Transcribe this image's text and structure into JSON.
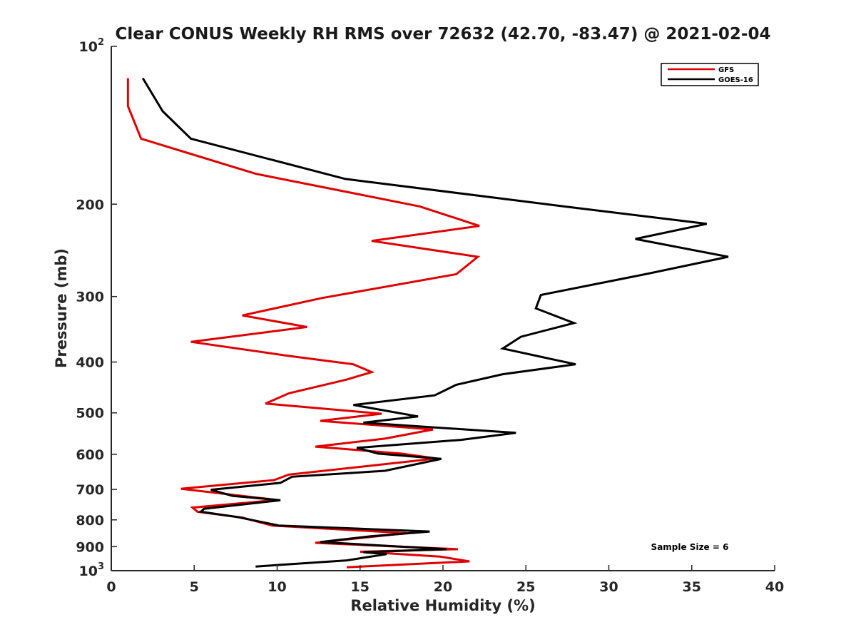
{
  "chart_data": {
    "type": "line",
    "title": "Clear CONUS Weekly RH RMS over 72632 (42.70, -83.47) @ 2021-02-04",
    "xlabel": "Relative Humidity (%)",
    "ylabel": "Pressure (mb)",
    "xlim": [
      0,
      40
    ],
    "ylim": [
      100,
      1000
    ],
    "y_scale": "log",
    "y_reversed": true,
    "grid": false,
    "legend_position": "top-right",
    "x_ticks": [
      "0",
      "5",
      "10",
      "15",
      "20",
      "25",
      "30",
      "35",
      "40"
    ],
    "y_ticks": [
      {
        "value": 100,
        "base": "10",
        "exp": "2"
      },
      {
        "value": 200,
        "label": "200"
      },
      {
        "value": 300,
        "label": "300"
      },
      {
        "value": 400,
        "label": "400"
      },
      {
        "value": 500,
        "label": "500"
      },
      {
        "value": 600,
        "label": "600"
      },
      {
        "value": 700,
        "label": "700"
      },
      {
        "value": 800,
        "label": "800"
      },
      {
        "value": 900,
        "label": "900"
      },
      {
        "value": 1000,
        "base": "10",
        "exp": "3"
      }
    ],
    "annotation": "Sample Size = 6",
    "series": [
      {
        "name": "GFS",
        "color": "#e00000",
        "points": [
          [
            1.0,
            115
          ],
          [
            1.0,
            130
          ],
          [
            1.8,
            150
          ],
          [
            8.7,
            175
          ],
          [
            18.6,
            202
          ],
          [
            22.2,
            220
          ],
          [
            15.7,
            235
          ],
          [
            22.1,
            252
          ],
          [
            20.8,
            272
          ],
          [
            12.7,
            302
          ],
          [
            7.9,
            326
          ],
          [
            11.8,
            343
          ],
          [
            4.8,
            366
          ],
          [
            10.6,
            389
          ],
          [
            14.6,
            404
          ],
          [
            15.7,
            418
          ],
          [
            14.2,
            432
          ],
          [
            10.7,
            459
          ],
          [
            9.3,
            480
          ],
          [
            16.3,
            502
          ],
          [
            12.6,
            518
          ],
          [
            19.4,
            538
          ],
          [
            16.5,
            560
          ],
          [
            12.3,
            580
          ],
          [
            17.5,
            598
          ],
          [
            19.6,
            611
          ],
          [
            10.7,
            656
          ],
          [
            9.8,
            672
          ],
          [
            4.2,
            698
          ],
          [
            10.0,
            733
          ],
          [
            4.9,
            758
          ],
          [
            5.2,
            772
          ],
          [
            7.9,
            792
          ],
          [
            9.7,
            820
          ],
          [
            17.8,
            848
          ],
          [
            12.3,
            885
          ],
          [
            20.9,
            910
          ],
          [
            15.0,
            920
          ],
          [
            16.3,
            925
          ],
          [
            19.8,
            940
          ],
          [
            21.6,
            960
          ],
          [
            14.2,
            985
          ]
        ]
      },
      {
        "name": "GOES-16",
        "color": "#000000",
        "points": [
          [
            1.9,
            115
          ],
          [
            3.1,
            133
          ],
          [
            4.8,
            150
          ],
          [
            14.1,
            179
          ],
          [
            27.3,
            202
          ],
          [
            35.9,
            218
          ],
          [
            31.6,
            233
          ],
          [
            37.2,
            252
          ],
          [
            32.2,
            272
          ],
          [
            25.9,
            298
          ],
          [
            25.6,
            316
          ],
          [
            27.9,
            337
          ],
          [
            24.7,
            358
          ],
          [
            23.6,
            377
          ],
          [
            28.0,
            404
          ],
          [
            23.6,
            422
          ],
          [
            20.8,
            442
          ],
          [
            19.5,
            463
          ],
          [
            14.6,
            483
          ],
          [
            18.5,
            508
          ],
          [
            15.2,
            522
          ],
          [
            24.4,
            546
          ],
          [
            21.1,
            563
          ],
          [
            14.8,
            583
          ],
          [
            16.1,
            598
          ],
          [
            19.9,
            612
          ],
          [
            16.5,
            645
          ],
          [
            10.9,
            662
          ],
          [
            10.2,
            680
          ],
          [
            6.0,
            701
          ],
          [
            7.3,
            720
          ],
          [
            10.2,
            734
          ],
          [
            5.6,
            762
          ],
          [
            5.4,
            772
          ],
          [
            7.6,
            790
          ],
          [
            10.1,
            820
          ],
          [
            19.2,
            842
          ],
          [
            15.6,
            860
          ],
          [
            12.6,
            882
          ],
          [
            20.2,
            910
          ],
          [
            15.2,
            922
          ],
          [
            16.6,
            930
          ],
          [
            14.2,
            956
          ],
          [
            8.7,
            982
          ]
        ]
      }
    ]
  }
}
